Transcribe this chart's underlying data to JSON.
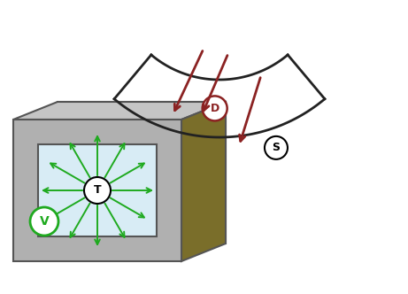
{
  "fig_width": 4.61,
  "fig_height": 3.32,
  "dpi": 100,
  "bg_color": "#ffffff",
  "box_gray": "#b0b0b0",
  "box_dark": "#555555",
  "box_brown": "#7a6e2a",
  "box_top_gray": "#c5c5c5",
  "inner_panel_color": "#d8ecf5",
  "arc_color": "#222222",
  "green_color": "#1faa1f",
  "red_color": "#8b2222",
  "label_T": "T",
  "label_V": "V",
  "label_D": "D",
  "label_S": "S"
}
